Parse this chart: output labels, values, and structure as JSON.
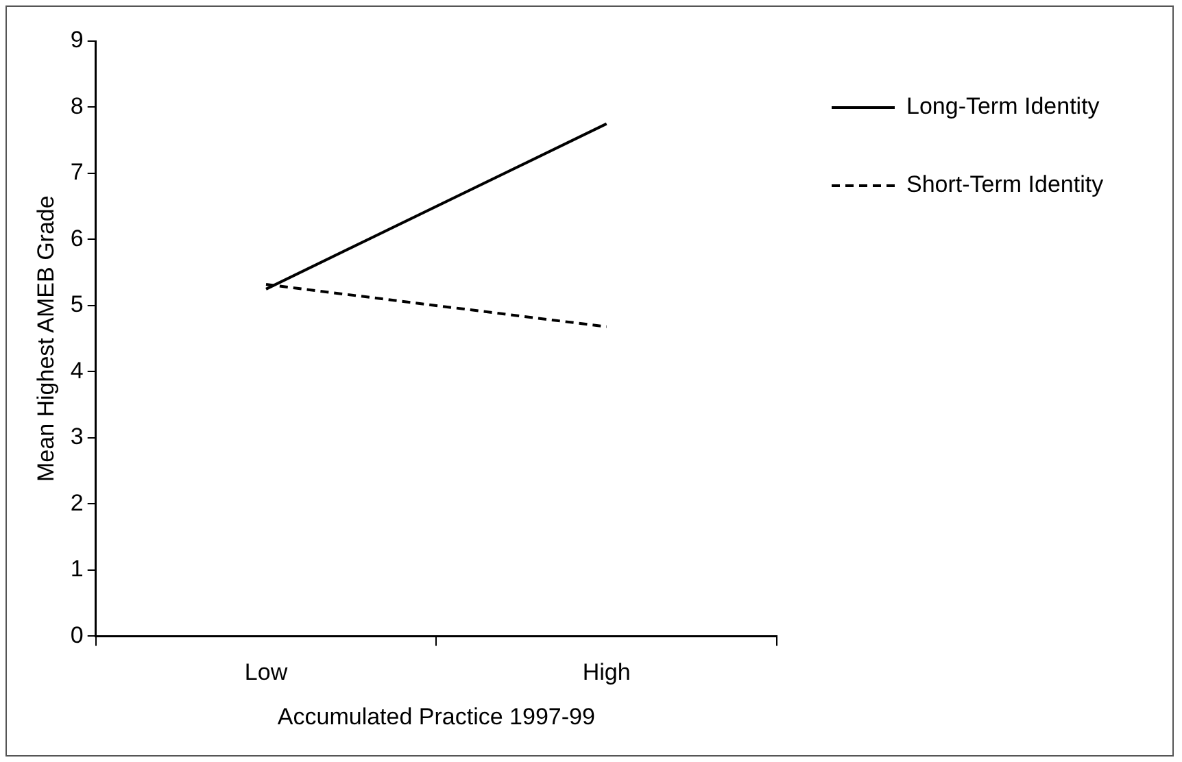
{
  "chart_data": {
    "type": "line",
    "xlabel": "Accumulated Practice 1997-99",
    "ylabel": "Mean Highest AMEB Grade",
    "categories": [
      "Low",
      "High"
    ],
    "series": [
      {
        "name": "Long-Term Identity",
        "color": "#000000",
        "values": [
          5.25,
          7.75
        ],
        "line_style": "solid"
      },
      {
        "name": "Short-Term Identity",
        "color": "#000000",
        "values": [
          5.32,
          4.68
        ],
        "line_style": "dashed"
      }
    ],
    "ylim": [
      0,
      9
    ],
    "yticks": [
      0,
      1,
      2,
      3,
      4,
      5,
      6,
      7,
      8,
      9
    ],
    "grid": false,
    "legend": "right",
    "marker": "none"
  }
}
